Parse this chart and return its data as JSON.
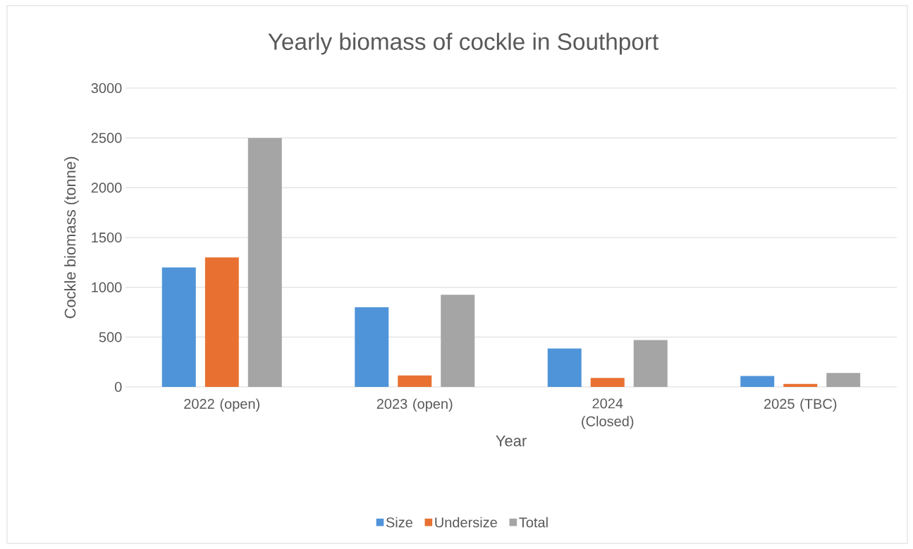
{
  "chart_data": {
    "type": "bar",
    "title": "Yearly biomass of cockle in Southport",
    "xlabel": "Year",
    "ylabel": "Cockle biomass (tonne)",
    "categories": [
      "2022 (open)",
      "2023 (open)",
      "2024 (Closed)",
      "2025 (TBC)"
    ],
    "series": [
      {
        "name": "Size",
        "color": "#4f94d9",
        "values": [
          1200,
          800,
          385,
          110
        ]
      },
      {
        "name": "Undersize",
        "color": "#e87131",
        "values": [
          1300,
          115,
          90,
          30
        ]
      },
      {
        "name": "Total",
        "color": "#a5a5a5",
        "values": [
          2500,
          925,
          470,
          140
        ]
      }
    ],
    "ylim": [
      0,
      3000
    ],
    "yticks": [
      0,
      500,
      1000,
      1500,
      2000,
      2500,
      3000
    ],
    "grid": "y",
    "legend": "bottom"
  }
}
